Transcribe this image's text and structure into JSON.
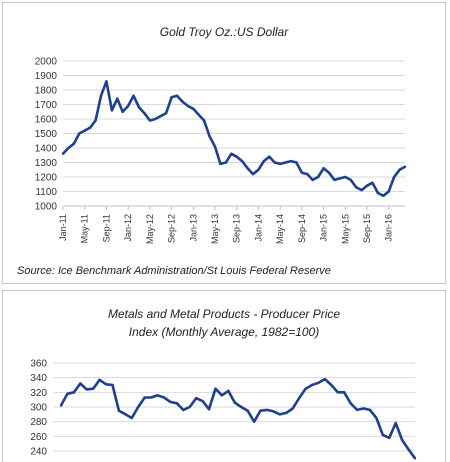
{
  "chart_data": [
    {
      "type": "line",
      "title": "Gold Troy Oz.:US Dollar",
      "source": "Source: Ice Benchmark Administration/St Louis Federal Reserve",
      "ylim": [
        1000,
        2000
      ],
      "yticks": [
        1000,
        1100,
        1200,
        1300,
        1400,
        1500,
        1600,
        1700,
        1800,
        1900,
        2000
      ],
      "xlim": [
        "2011-01",
        "2016-04"
      ],
      "xtick_labels": [
        "Jan-11",
        "May-11",
        "Sep-11",
        "Jan-12",
        "May-12",
        "Sep-12",
        "Jan-13",
        "May-13",
        "Sep-13",
        "Jan-14",
        "May-14",
        "Sep-14",
        "Jan-15",
        "May-15",
        "Sep-15",
        "Jan-16"
      ],
      "grid": true,
      "color": "#1f3f8f",
      "series": [
        {
          "x": [
            "2011-01",
            "2011-02",
            "2011-03",
            "2011-04",
            "2011-05",
            "2011-06",
            "2011-07",
            "2011-08",
            "2011-09",
            "2011-10",
            "2011-11",
            "2011-12",
            "2012-01",
            "2012-02",
            "2012-03",
            "2012-04",
            "2012-05",
            "2012-06",
            "2012-07",
            "2012-08",
            "2012-09",
            "2012-10",
            "2012-11",
            "2012-12",
            "2013-01",
            "2013-02",
            "2013-03",
            "2013-04",
            "2013-05",
            "2013-06",
            "2013-07",
            "2013-08",
            "2013-09",
            "2013-10",
            "2013-11",
            "2013-12",
            "2014-01",
            "2014-02",
            "2014-03",
            "2014-04",
            "2014-05",
            "2014-06",
            "2014-07",
            "2014-08",
            "2014-09",
            "2014-10",
            "2014-11",
            "2014-12",
            "2015-01",
            "2015-02",
            "2015-03",
            "2015-04",
            "2015-05",
            "2015-06",
            "2015-07",
            "2015-08",
            "2015-09",
            "2015-10",
            "2015-11",
            "2015-12",
            "2016-01",
            "2016-02",
            "2016-03",
            "2016-04"
          ],
          "values": [
            1360,
            1400,
            1430,
            1500,
            1520,
            1540,
            1590,
            1760,
            1860,
            1660,
            1740,
            1650,
            1690,
            1760,
            1680,
            1640,
            1590,
            1600,
            1620,
            1640,
            1750,
            1760,
            1720,
            1690,
            1670,
            1630,
            1590,
            1480,
            1410,
            1290,
            1300,
            1360,
            1340,
            1310,
            1260,
            1220,
            1250,
            1310,
            1340,
            1300,
            1290,
            1300,
            1310,
            1300,
            1230,
            1220,
            1180,
            1200,
            1260,
            1230,
            1180,
            1190,
            1200,
            1180,
            1130,
            1110,
            1140,
            1160,
            1090,
            1070,
            1100,
            1200,
            1250,
            1270
          ]
        }
      ]
    },
    {
      "type": "line",
      "title": "Metals and Metal Products - Producer Price Index (Monthly Average, 1982=100)",
      "title_lines": [
        "Metals and Metal Products - Producer Price",
        "Index (Monthly Average, 1982=100)"
      ],
      "ylim": [
        240,
        360
      ],
      "yticks": [
        240,
        260,
        280,
        300,
        320,
        340,
        360
      ],
      "grid": true,
      "color": "#1f3f8f",
      "series": [
        {
          "values": [
            302,
            318,
            320,
            332,
            324,
            325,
            337,
            331,
            330,
            295,
            290,
            285,
            300,
            313,
            313,
            316,
            313,
            307,
            305,
            296,
            300,
            312,
            308,
            297,
            325,
            316,
            322,
            306,
            300,
            295,
            280,
            295,
            296,
            294,
            290,
            292,
            298,
            312,
            325,
            330,
            333,
            338,
            330,
            320,
            320,
            305,
            296,
            298,
            296,
            285,
            262,
            258,
            278,
            255,
            242,
            230
          ]
        }
      ]
    }
  ]
}
